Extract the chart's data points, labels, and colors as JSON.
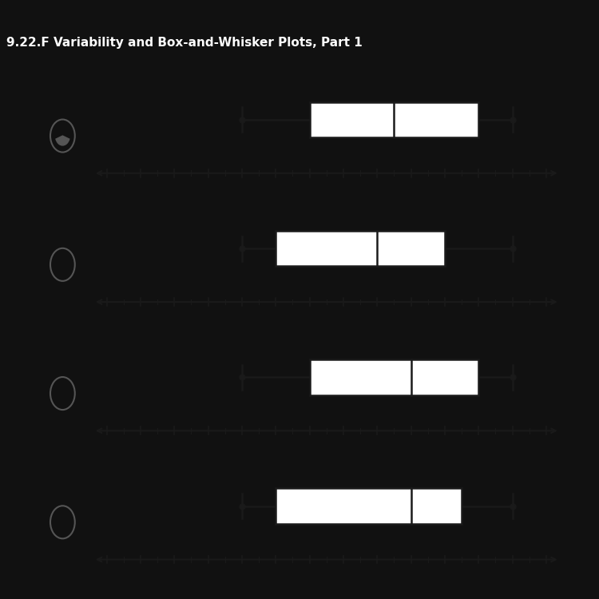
{
  "title": "9.22.F Variability and Box-and-Whisker Plots, Part 1",
  "plots": [
    {
      "min": 18,
      "q1": 22,
      "median": 27,
      "q3": 32,
      "max": 34,
      "selected": true
    },
    {
      "min": 18,
      "q1": 20,
      "median": 26,
      "q3": 30,
      "max": 34,
      "selected": false
    },
    {
      "min": 18,
      "q1": 22,
      "median": 28,
      "q3": 32,
      "max": 34,
      "selected": false
    },
    {
      "min": 18,
      "q1": 20,
      "median": 28,
      "q3": 31,
      "max": 34,
      "selected": false
    }
  ],
  "xmin": 10,
  "xmax": 36,
  "xticks": [
    10,
    12,
    14,
    16,
    18,
    20,
    22,
    24,
    26,
    28,
    30,
    32,
    34,
    36
  ],
  "bg_dark": "#111111",
  "bg_white": "#f5f5f5",
  "bg_panel": "#e8e8e8",
  "box_facecolor": "#ffffff",
  "box_edgecolor": "#1a1a1a",
  "whisker_color": "#1a1a1a",
  "axis_color": "#1a1a1a",
  "tick_label_color": "#111111",
  "title_color": "#ffffff",
  "title_fontsize": 11,
  "radio_color": "#555555"
}
